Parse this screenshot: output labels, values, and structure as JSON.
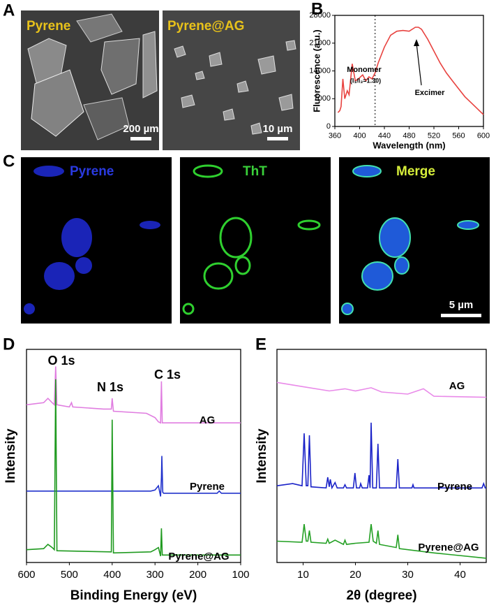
{
  "panel_labels": [
    "A",
    "B",
    "C",
    "D",
    "E"
  ],
  "panel_a": {
    "images": [
      {
        "label": "Pyrene",
        "scale_bar": "200 µm"
      },
      {
        "label": "Pyrene@AG",
        "scale_bar": "10 µm"
      }
    ]
  },
  "panel_c": {
    "images": [
      {
        "label": "Pyrene"
      },
      {
        "label": "ThT"
      },
      {
        "label": "Merge",
        "scale_bar": "5 µm"
      }
    ]
  },
  "chart_data": [
    {
      "type": "line",
      "x_label": "Wavelength (nm)",
      "y_label": "Fluorescence (a.u.)",
      "x": [
        365,
        368,
        370,
        373,
        376,
        380,
        383,
        388,
        393,
        398,
        405,
        410,
        415,
        420,
        425,
        430,
        440,
        450,
        460,
        470,
        480,
        490,
        495,
        500,
        510,
        520,
        530,
        540,
        550,
        560,
        570,
        580,
        590,
        600
      ],
      "values": [
        3500,
        4000,
        5000,
        12000,
        7000,
        9000,
        8000,
        15800,
        11500,
        12000,
        13000,
        11500,
        12500,
        12000,
        13500,
        16000,
        20000,
        23000,
        24000,
        24200,
        24000,
        25000,
        25000,
        24500,
        22000,
        19000,
        16000,
        13500,
        11500,
        9500,
        7500,
        6000,
        4500,
        3000
      ],
      "color": "#e8423f",
      "xlim": [
        360,
        600
      ],
      "xticks": [
        360,
        400,
        440,
        480,
        520,
        560,
        600
      ],
      "ylim": [
        0,
        28000
      ],
      "yticks": [
        0,
        7000,
        14000,
        21000,
        28000
      ],
      "reference_line": {
        "x": 425
      },
      "annotations": [
        "Monomer",
        "(I₁/I₃=1.30)",
        "Excimer"
      ]
    },
    {
      "type": "line",
      "x_label": "Binding Energy (eV)",
      "y_label": "Intensity",
      "xlim": [
        600,
        100
      ],
      "xticks": [
        600,
        500,
        400,
        300,
        200,
        100
      ],
      "ylim": [
        0,
        100
      ],
      "annotations": [
        "O 1s",
        "N 1s",
        "C 1s"
      ],
      "series": [
        {
          "name": "AG",
          "color": "#e07de0",
          "x": [
            600,
            560,
            550,
            540,
            535,
            532,
            529,
            500,
            495,
            492,
            420,
            402,
            400,
            397,
            320,
            300,
            292,
            287,
            285,
            283,
            280,
            100
          ],
          "values": [
            74,
            75,
            77,
            75,
            74,
            92,
            74,
            73,
            75,
            73,
            72,
            72,
            77,
            71,
            70,
            68,
            66,
            65.5,
            85,
            65.5,
            65.5,
            65.5
          ]
        },
        {
          "name": "Pyrene",
          "color": "#2233cc",
          "x": [
            600,
            310,
            300,
            292,
            287,
            285,
            284,
            282,
            280,
            155,
            150,
            145,
            100
          ],
          "values": [
            33.5,
            33.5,
            34,
            36,
            31,
            40,
            50,
            33,
            32.5,
            32.5,
            33.5,
            32.5,
            32.5
          ]
        },
        {
          "name": "Pyrene@AG",
          "color": "#1f9a1f",
          "x": [
            600,
            560,
            550,
            540,
            535,
            532,
            529,
            405,
            402,
            400,
            397,
            310,
            300,
            292,
            287,
            285,
            283,
            280,
            100
          ],
          "values": [
            6,
            6.5,
            8.5,
            7,
            6,
            86,
            5.5,
            5,
            5,
            67,
            4.5,
            5,
            6,
            7,
            3,
            16,
            3.5,
            3.5,
            3.5
          ]
        }
      ]
    },
    {
      "type": "line",
      "x_label": "2θ (degree)",
      "y_label": "Intensity",
      "xlim": [
        5,
        45
      ],
      "xticks": [
        10,
        20,
        30,
        40
      ],
      "ylim": [
        0,
        100
      ],
      "series": [
        {
          "name": "AG",
          "color": "#e98ae9",
          "x": [
            5,
            10,
            15,
            18,
            20,
            23,
            25,
            30,
            33,
            35,
            45
          ],
          "values": [
            84.5,
            82.5,
            80.5,
            81.5,
            80.5,
            82,
            80,
            79,
            81.5,
            78,
            77.5
          ]
        },
        {
          "name": "Pyrene",
          "color": "#1a22c8",
          "x": [
            5,
            8,
            9.8,
            10.2,
            10.6,
            10.9,
            11.2,
            11.5,
            14.4,
            14.7,
            15.0,
            15.2,
            15.5,
            16.1,
            16.5,
            17.7,
            18,
            18.3,
            19.6,
            19.9,
            20.2,
            20.8,
            21,
            21.3,
            22.3,
            22.6,
            22.8,
            23.0,
            23.3,
            24.0,
            24.3,
            24.6,
            27.8,
            28.1,
            28.4,
            30.8,
            31,
            31.2,
            44.2,
            44.5,
            44.8,
            45
          ],
          "values": [
            36,
            37,
            36,
            60.6,
            36,
            36,
            59.7,
            35.5,
            35,
            40,
            35.5,
            39,
            35,
            37.5,
            35,
            35,
            36.5,
            35,
            35,
            42,
            35,
            35,
            37,
            35,
            35,
            41,
            35,
            65.6,
            35,
            35,
            55.7,
            35,
            35,
            48.5,
            35,
            35,
            36.5,
            35,
            35,
            37,
            35,
            35
          ]
        },
        {
          "name": "Pyrene@AG",
          "color": "#24a024",
          "x": [
            5,
            9.8,
            10.2,
            10.6,
            10.9,
            11.2,
            11.5,
            14.4,
            14.7,
            15.0,
            16.1,
            17.7,
            18,
            18.3,
            20,
            22.6,
            23,
            23.4,
            24.0,
            24.3,
            24.6,
            27.8,
            28.1,
            28.4,
            35,
            45
          ],
          "values": [
            10,
            9.5,
            18,
            10,
            10,
            15,
            9.5,
            9,
            11,
            9,
            10.5,
            8.5,
            10.5,
            8.5,
            9,
            9.5,
            18,
            10,
            9,
            15,
            8.5,
            7,
            13,
            6.5,
            4.5,
            2
          ]
        }
      ]
    }
  ]
}
